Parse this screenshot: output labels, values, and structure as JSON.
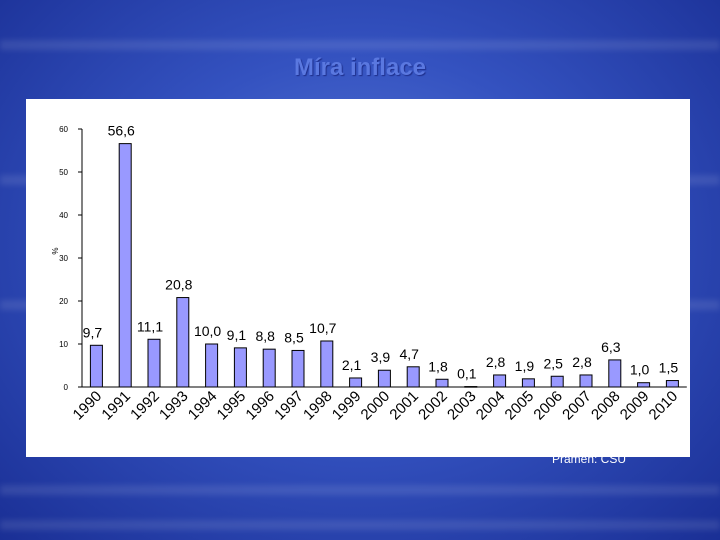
{
  "slide": {
    "title": "Míra inflace",
    "source": "Pramen: ČSÚ"
  },
  "colors": {
    "bar_fill": "#9999ff",
    "bar_stroke": "#000000",
    "title": "#5a78e0",
    "background": "#3452c0"
  },
  "chart_data": {
    "type": "bar",
    "title": "",
    "xlabel": "",
    "ylabel": "%",
    "ylim": [
      0,
      60
    ],
    "yticks": [
      0,
      10,
      20,
      30,
      40,
      50,
      60
    ],
    "grid": false,
    "categories": [
      "1990",
      "1991",
      "1992",
      "1993",
      "1994",
      "1995",
      "1996",
      "1997",
      "1998",
      "1999",
      "2000",
      "2001",
      "2002",
      "2003",
      "2004",
      "2005",
      "2006",
      "2007",
      "2008",
      "2009",
      "2010"
    ],
    "values": [
      9.7,
      56.6,
      11.1,
      20.8,
      10.0,
      9.1,
      8.8,
      8.5,
      10.7,
      2.1,
      3.9,
      4.7,
      1.8,
      0.1,
      2.8,
      1.9,
      2.5,
      2.8,
      6.3,
      1.0,
      1.5
    ],
    "data_labels": [
      "9,7",
      "56,6",
      "11,1",
      "20,8",
      "10,0",
      "9,1",
      "8,8",
      "8,5",
      "10,7",
      "2,1",
      "3,9",
      "4,7",
      "1,8",
      "0,1",
      "2,8",
      "1,9",
      "2,5",
      "2,8",
      "6,3",
      "1,0",
      "1,5"
    ]
  }
}
